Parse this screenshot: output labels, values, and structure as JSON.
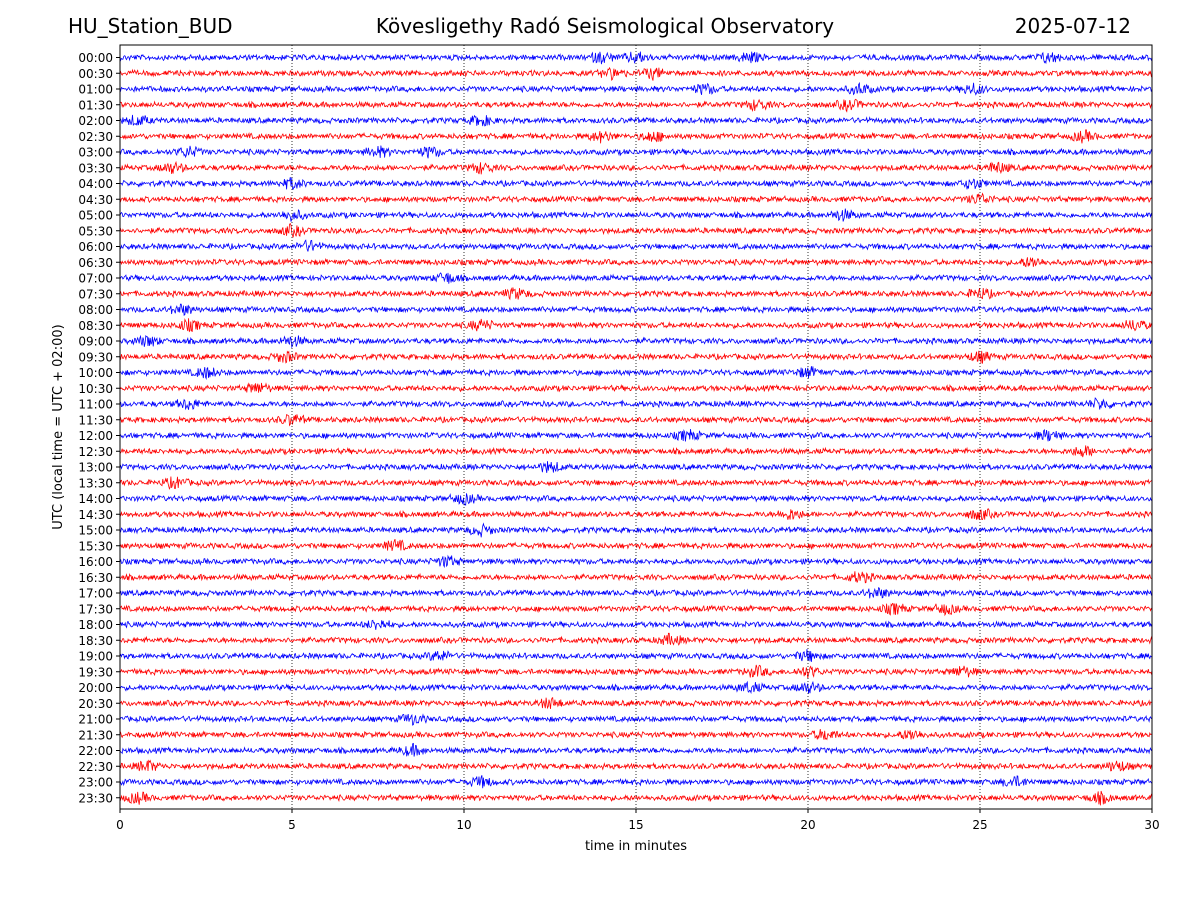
{
  "header": {
    "station": "HU_Station_BUD",
    "observatory": "Kövesligethy Radó Seismological Observatory",
    "date": "2025-07-12"
  },
  "chart_data": {
    "type": "line",
    "title": "Kövesligethy Radó Seismological Observatory",
    "xlabel": "time in minutes",
    "ylabel": "UTC (local time = UTC + 02:00)",
    "xlim": [
      0,
      30
    ],
    "xticks": [
      0,
      5,
      10,
      15,
      20,
      25,
      30
    ],
    "grid": "vertical dotted lines at x ticks",
    "colors": {
      "even_rows": "#0000ff",
      "odd_rows": "#ff0000",
      "frame": "#000000"
    },
    "rows": [
      {
        "label": "00:00",
        "events": [
          14.0,
          15.0,
          18.3,
          27.0
        ]
      },
      {
        "label": "00:30",
        "events": [
          14.3,
          15.5
        ]
      },
      {
        "label": "01:00",
        "events": [
          17.0,
          21.5,
          24.8
        ]
      },
      {
        "label": "01:30",
        "events": [
          18.5,
          21.2
        ]
      },
      {
        "label": "02:00",
        "events": [
          0.5,
          10.5
        ]
      },
      {
        "label": "02:30",
        "events": [
          14.0,
          15.5,
          28.0
        ]
      },
      {
        "label": "03:00",
        "events": [
          2.0,
          7.5,
          9.0
        ]
      },
      {
        "label": "03:30",
        "events": [
          1.5,
          10.5,
          25.5
        ]
      },
      {
        "label": "04:00",
        "events": [
          5.0,
          24.8
        ]
      },
      {
        "label": "04:30",
        "events": [
          25.0
        ]
      },
      {
        "label": "05:00",
        "events": [
          5.0,
          21.0
        ]
      },
      {
        "label": "05:30",
        "events": [
          5.0
        ]
      },
      {
        "label": "06:00",
        "events": [
          5.5
        ]
      },
      {
        "label": "06:30",
        "events": [
          26.5
        ]
      },
      {
        "label": "07:00",
        "events": [
          9.5
        ]
      },
      {
        "label": "07:30",
        "events": [
          11.5,
          25.0
        ]
      },
      {
        "label": "08:00",
        "events": [
          1.8
        ]
      },
      {
        "label": "08:30",
        "events": [
          2.0,
          10.5,
          29.5
        ]
      },
      {
        "label": "09:00",
        "events": [
          0.8,
          5.0
        ]
      },
      {
        "label": "09:30",
        "events": [
          4.8,
          25.0
        ]
      },
      {
        "label": "10:00",
        "events": [
          2.5,
          20.0
        ]
      },
      {
        "label": "10:30",
        "events": [
          4.0
        ]
      },
      {
        "label": "11:00",
        "events": [
          2.0,
          28.5
        ]
      },
      {
        "label": "11:30",
        "events": [
          5.0
        ]
      },
      {
        "label": "12:00",
        "events": [
          16.5,
          27.0
        ]
      },
      {
        "label": "12:30",
        "events": [
          28.0
        ]
      },
      {
        "label": "13:00",
        "events": [
          12.5
        ]
      },
      {
        "label": "13:30",
        "events": [
          1.6
        ]
      },
      {
        "label": "14:00",
        "events": [
          10.0
        ]
      },
      {
        "label": "14:30",
        "events": [
          19.5,
          25.0
        ]
      },
      {
        "label": "15:00",
        "events": [
          10.5
        ]
      },
      {
        "label": "15:30",
        "events": [
          8.0
        ]
      },
      {
        "label": "16:00",
        "events": [
          9.5
        ]
      },
      {
        "label": "16:30",
        "events": [
          21.5
        ]
      },
      {
        "label": "17:00",
        "events": [
          22.0
        ]
      },
      {
        "label": "17:30",
        "events": [
          22.5,
          24.0
        ]
      },
      {
        "label": "18:00",
        "events": [
          7.5
        ]
      },
      {
        "label": "18:30",
        "events": [
          16.0
        ]
      },
      {
        "label": "19:00",
        "events": [
          9.3,
          20.0
        ]
      },
      {
        "label": "19:30",
        "events": [
          18.5,
          20.0,
          24.5
        ]
      },
      {
        "label": "20:00",
        "events": [
          18.3,
          20.0
        ]
      },
      {
        "label": "20:30",
        "events": [
          12.5
        ]
      },
      {
        "label": "21:00",
        "events": [
          8.5
        ]
      },
      {
        "label": "21:30",
        "events": [
          20.5,
          23.0
        ]
      },
      {
        "label": "22:00",
        "events": [
          8.5
        ]
      },
      {
        "label": "22:30",
        "events": [
          0.8,
          29.0
        ]
      },
      {
        "label": "23:00",
        "events": [
          10.5,
          26.0
        ]
      },
      {
        "label": "23:30",
        "events": [
          0.5,
          28.5
        ]
      }
    ]
  }
}
